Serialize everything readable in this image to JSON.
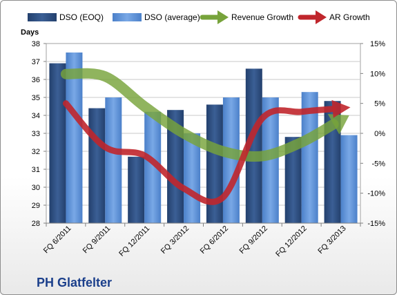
{
  "chart_data": {
    "type": "bar",
    "company": "PH Glatfelter",
    "ylabel_left": "Days",
    "categories": [
      "FQ 6/2011",
      "FQ 9/2011",
      "FQ 12/2011",
      "FQ 3/2012",
      "FQ 6/2012",
      "FQ 9/2012",
      "FQ 12/2012",
      "FQ 3/2013"
    ],
    "ylim_left": [
      28,
      38
    ],
    "ylim_right": [
      -15,
      15
    ],
    "yticks_left": [
      "28",
      "29",
      "30",
      "31",
      "32",
      "33",
      "34",
      "35",
      "36",
      "37",
      "38"
    ],
    "yticks_right": [
      "-15%",
      "-10%",
      "-5%",
      "0%",
      "5%",
      "10%",
      "15%"
    ],
    "grid": true,
    "legend_position": "top",
    "bar_series": [
      {
        "name": "DSO (EOQ)",
        "color": "#2c4d7e",
        "values": [
          36.9,
          34.4,
          31.7,
          34.3,
          34.6,
          36.6,
          32.8,
          34.8
        ]
      },
      {
        "name": "DSO (average)",
        "color": "#5b8fd6",
        "values": [
          37.5,
          35.0,
          34.2,
          33.0,
          35.0,
          35.0,
          35.3,
          32.9
        ]
      }
    ],
    "line_series": [
      {
        "name": "Revenue Growth",
        "color": "#77a33b",
        "axis": "right",
        "values": [
          9.9,
          9.5,
          4.5,
          0.0,
          -3.0,
          -3.8,
          -1.5,
          2.2
        ]
      },
      {
        "name": "AR Growth",
        "color": "#c0262c",
        "axis": "right",
        "values": [
          5.0,
          -2.3,
          -3.7,
          -9.2,
          -10.7,
          2.5,
          3.6,
          4.2
        ]
      }
    ]
  }
}
